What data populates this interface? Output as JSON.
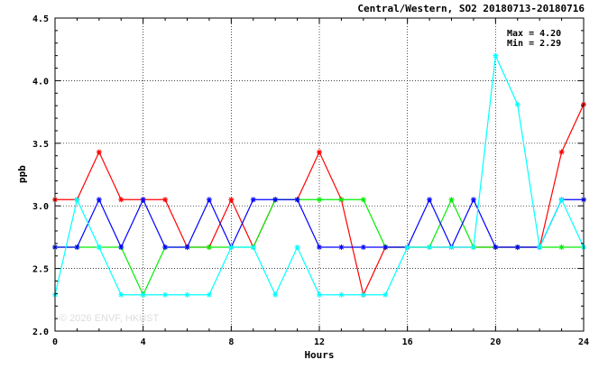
{
  "chart_data": {
    "type": "line",
    "title": "Central/Western, SO2 20180713-20180716",
    "xlabel": "Hours",
    "ylabel": "ppb",
    "xlim": [
      0,
      24
    ],
    "ylim": [
      2.0,
      4.5
    ],
    "x_ticks": [
      0,
      4,
      8,
      12,
      16,
      20,
      24
    ],
    "y_ticks": [
      "2.0",
      "2.5",
      "3.0",
      "3.5",
      "4.0",
      "4.5"
    ],
    "grid": true,
    "annotations": {
      "max": "Max = 4.20",
      "min": "Min = 2.29"
    },
    "watermark": "© 2026  ENVF, HKUST",
    "x": [
      0,
      1,
      2,
      3,
      4,
      5,
      6,
      7,
      8,
      9,
      10,
      11,
      12,
      13,
      14,
      15,
      16,
      17,
      18,
      19,
      20,
      21,
      22,
      23,
      24
    ],
    "series": [
      {
        "color": "#ff0000",
        "values": [
          3.05,
          3.05,
          3.43,
          3.05,
          3.05,
          3.05,
          2.67,
          2.67,
          3.05,
          2.67,
          3.05,
          3.05,
          3.43,
          3.05,
          2.29,
          2.67,
          2.67,
          2.67,
          2.67,
          2.67,
          2.67,
          2.67,
          2.67,
          3.43,
          3.81
        ]
      },
      {
        "color": "#00ee00",
        "values": [
          2.67,
          2.67,
          2.67,
          2.67,
          2.29,
          2.67,
          2.67,
          2.67,
          2.67,
          2.67,
          3.05,
          3.05,
          3.05,
          3.05,
          3.05,
          2.67,
          2.67,
          2.67,
          3.05,
          2.67,
          2.67,
          2.67,
          2.67,
          2.67,
          2.67
        ]
      },
      {
        "color": "#0000ff",
        "values": [
          2.67,
          2.67,
          3.05,
          2.67,
          3.05,
          2.67,
          2.67,
          3.05,
          2.67,
          3.05,
          3.05,
          3.05,
          2.67,
          2.67,
          2.67,
          2.67,
          2.67,
          3.05,
          2.67,
          3.05,
          2.67,
          2.67,
          2.67,
          3.05,
          3.05
        ]
      },
      {
        "color": "#00ffff",
        "values": [
          2.29,
          3.05,
          2.67,
          2.29,
          2.29,
          2.29,
          2.29,
          2.29,
          2.67,
          2.67,
          2.29,
          2.67,
          2.29,
          2.29,
          2.29,
          2.29,
          2.67,
          2.67,
          2.67,
          2.67,
          4.2,
          3.81,
          2.67,
          3.05,
          2.67
        ]
      }
    ]
  }
}
